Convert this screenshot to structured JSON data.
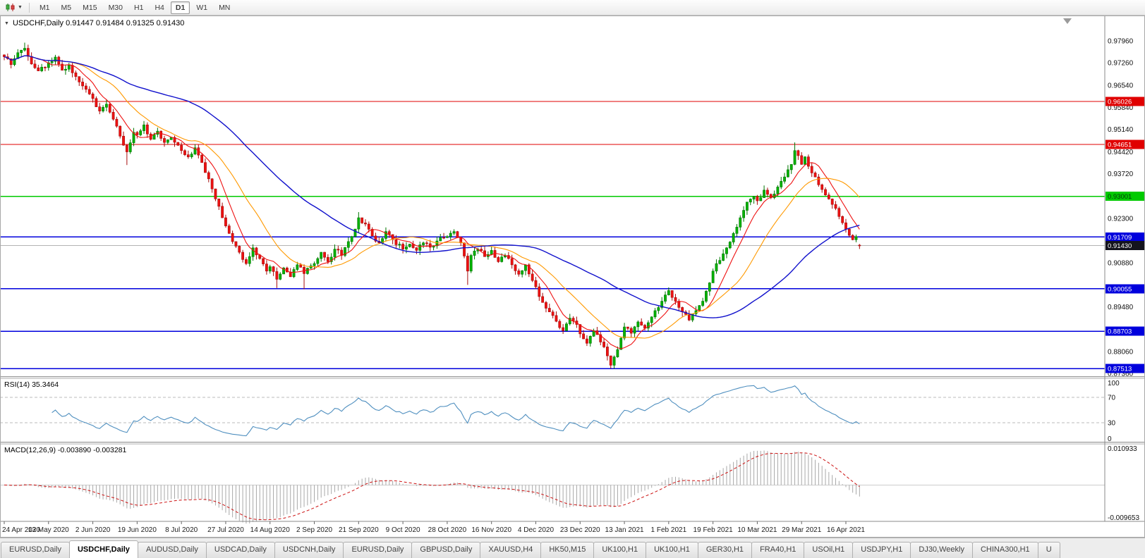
{
  "icons": {
    "caret_down": "▼"
  },
  "toolbar": {
    "timeframes": [
      "M1",
      "M5",
      "M15",
      "M30",
      "H1",
      "H4",
      "D1",
      "W1",
      "MN"
    ],
    "active_timeframe": "D1"
  },
  "chart": {
    "header": "USDCHF,Daily 0.91447 0.91484 0.91325 0.91430",
    "symbol": "USDCHF",
    "period": "Daily"
  },
  "chart_data": {
    "type": "candlestick",
    "title": "USDCHF,Daily",
    "ohlc": {
      "open": 0.91447,
      "high": 0.91484,
      "low": 0.91325,
      "close": 0.9143
    },
    "bar_count": 252,
    "bars_per_label": 13,
    "x_labels": [
      "24 Apr 2020",
      "13 May 2020",
      "2 Jun 2020",
      "19 Jun 2020",
      "8 Jul 2020",
      "27 Jul 2020",
      "14 Aug 2020",
      "2 Sep 2020",
      "21 Sep 2020",
      "9 Oct 2020",
      "28 Oct 2020",
      "16 Nov 2020",
      "4 Dec 2020",
      "23 Dec 2020",
      "13 Jan 2021",
      "1 Feb 2021",
      "19 Feb 2021",
      "10 Mar 2021",
      "29 Mar 2021",
      "16 Apr 2021"
    ],
    "price_range": [
      0.8727,
      0.9872
    ],
    "y_ticks": [
      {
        "v": 0.9796,
        "t": "0.97960"
      },
      {
        "v": 0.9726,
        "t": "0.97260"
      },
      {
        "v": 0.9654,
        "t": "0.96540"
      },
      {
        "v": 0.9584,
        "t": "0.95840"
      },
      {
        "v": 0.9514,
        "t": "0.95140"
      },
      {
        "v": 0.9442,
        "t": "0.94420"
      },
      {
        "v": 0.9372,
        "t": "0.93720"
      },
      {
        "v": 0.923,
        "t": "0.92300"
      },
      {
        "v": 0.9088,
        "t": "0.90880"
      },
      {
        "v": 0.8948,
        "t": "0.89480"
      },
      {
        "v": 0.8806,
        "t": "0.88060"
      },
      {
        "v": 0.8736,
        "t": "0.87360"
      }
    ],
    "hlines": [
      {
        "value": 0.96026,
        "label": "0.96026",
        "color": "#e00000",
        "width": 1,
        "label_fg": "#ffffff"
      },
      {
        "value": 0.94651,
        "label": "0.94651",
        "color": "#e00000",
        "width": 1,
        "label_fg": "#ffffff"
      },
      {
        "value": 0.93001,
        "label": "0.93001",
        "color": "#00ca00",
        "width": 1.2,
        "label_fg": "#003a08"
      },
      {
        "value": 0.91709,
        "label": "0.91709",
        "color": "#0000dd",
        "width": 1.5,
        "label_fg": "#ffffff"
      },
      {
        "value": 0.90055,
        "label": "0.90055",
        "color": "#0000dd",
        "width": 1.5,
        "label_fg": "#ffffff"
      },
      {
        "value": 0.88703,
        "label": "0.88703",
        "color": "#0000dd",
        "width": 1.5,
        "label_fg": "#ffffff"
      },
      {
        "value": 0.87513,
        "label": "0.87513",
        "color": "#0000dd",
        "width": 1.5,
        "label_fg": "#ffffff"
      }
    ],
    "current_price": {
      "value": 0.9143,
      "label": "0.91430",
      "line_color": "#b4b4b4",
      "bg": "#14141e",
      "fg": "#ffffff"
    },
    "close_anchors": [
      [
        0,
        0.9745
      ],
      [
        2,
        0.972
      ],
      [
        4,
        0.9758
      ],
      [
        6,
        0.9772
      ],
      [
        8,
        0.9722
      ],
      [
        10,
        0.97
      ],
      [
        13,
        0.9726
      ],
      [
        15,
        0.9744
      ],
      [
        17,
        0.9702
      ],
      [
        19,
        0.9718
      ],
      [
        21,
        0.9682
      ],
      [
        23,
        0.9652
      ],
      [
        26,
        0.9612
      ],
      [
        28,
        0.9572
      ],
      [
        30,
        0.9594
      ],
      [
        32,
        0.9546
      ],
      [
        34,
        0.9492
      ],
      [
        36,
        0.9442
      ],
      [
        38,
        0.9504
      ],
      [
        39,
        0.9496
      ],
      [
        41,
        0.9528
      ],
      [
        43,
        0.9482
      ],
      [
        45,
        0.9508
      ],
      [
        47,
        0.9472
      ],
      [
        49,
        0.9488
      ],
      [
        52,
        0.9446
      ],
      [
        54,
        0.9426
      ],
      [
        56,
        0.9455
      ],
      [
        58,
        0.9408
      ],
      [
        60,
        0.9356
      ],
      [
        62,
        0.9292
      ],
      [
        64,
        0.9232
      ],
      [
        65,
        0.9206
      ],
      [
        67,
        0.9156
      ],
      [
        69,
        0.9122
      ],
      [
        71,
        0.9086
      ],
      [
        73,
        0.9136
      ],
      [
        75,
        0.9102
      ],
      [
        77,
        0.9062
      ],
      [
        78,
        0.9076
      ],
      [
        80,
        0.9036
      ],
      [
        82,
        0.9072
      ],
      [
        84,
        0.9044
      ],
      [
        86,
        0.9082
      ],
      [
        88,
        0.9054
      ],
      [
        91,
        0.9086
      ],
      [
        93,
        0.9122
      ],
      [
        95,
        0.9092
      ],
      [
        97,
        0.9132
      ],
      [
        99,
        0.9112
      ],
      [
        101,
        0.9156
      ],
      [
        103,
        0.9196
      ],
      [
        104,
        0.9232
      ],
      [
        106,
        0.9212
      ],
      [
        108,
        0.9174
      ],
      [
        110,
        0.9152
      ],
      [
        112,
        0.9188
      ],
      [
        114,
        0.9162
      ],
      [
        117,
        0.9132
      ],
      [
        119,
        0.9148
      ],
      [
        121,
        0.9128
      ],
      [
        123,
        0.9152
      ],
      [
        125,
        0.9138
      ],
      [
        127,
        0.9158
      ],
      [
        130,
        0.9172
      ],
      [
        132,
        0.9188
      ],
      [
        134,
        0.9152
      ],
      [
        136,
        0.9062
      ],
      [
        137,
        0.9112
      ],
      [
        139,
        0.9132
      ],
      [
        141,
        0.9108
      ],
      [
        143,
        0.9128
      ],
      [
        145,
        0.9092
      ],
      [
        147,
        0.9112
      ],
      [
        149,
        0.9082
      ],
      [
        151,
        0.9052
      ],
      [
        153,
        0.9082
      ],
      [
        155,
        0.9032
      ],
      [
        156,
        0.9012
      ],
      [
        158,
        0.8962
      ],
      [
        160,
        0.8932
      ],
      [
        162,
        0.8902
      ],
      [
        164,
        0.8872
      ],
      [
        166,
        0.8912
      ],
      [
        168,
        0.8892
      ],
      [
        169,
        0.8862
      ],
      [
        171,
        0.8832
      ],
      [
        173,
        0.8872
      ],
      [
        175,
        0.8836
      ],
      [
        177,
        0.8792
      ],
      [
        178,
        0.8762
      ],
      [
        180,
        0.8812
      ],
      [
        182,
        0.8884
      ],
      [
        184,
        0.8864
      ],
      [
        186,
        0.89
      ],
      [
        188,
        0.888
      ],
      [
        190,
        0.8916
      ],
      [
        192,
        0.8946
      ],
      [
        194,
        0.8986
      ],
      [
        195,
        0.9
      ],
      [
        197,
        0.8966
      ],
      [
        199,
        0.8932
      ],
      [
        201,
        0.8906
      ],
      [
        203,
        0.8936
      ],
      [
        205,
        0.8966
      ],
      [
        208,
        0.9062
      ],
      [
        210,
        0.9096
      ],
      [
        212,
        0.9136
      ],
      [
        214,
        0.9182
      ],
      [
        216,
        0.9232
      ],
      [
        218,
        0.9282
      ],
      [
        220,
        0.93
      ],
      [
        221,
        0.9286
      ],
      [
        223,
        0.932
      ],
      [
        225,
        0.9296
      ],
      [
        227,
        0.933
      ],
      [
        229,
        0.9362
      ],
      [
        231,
        0.9402
      ],
      [
        232,
        0.9446
      ],
      [
        233,
        0.943
      ],
      [
        234,
        0.9402
      ],
      [
        235,
        0.9426
      ],
      [
        236,
        0.9396
      ],
      [
        238,
        0.9362
      ],
      [
        240,
        0.9322
      ],
      [
        242,
        0.9292
      ],
      [
        244,
        0.9262
      ],
      [
        245,
        0.9236
      ],
      [
        246,
        0.9216
      ],
      [
        247,
        0.9196
      ],
      [
        248,
        0.9176
      ],
      [
        249,
        0.9162
      ],
      [
        250,
        0.9172
      ],
      [
        251,
        0.9143
      ]
    ],
    "specials": [
      {
        "bar": 6,
        "high": 0.979
      },
      {
        "bar": 36,
        "low": 0.94
      },
      {
        "bar": 80,
        "low": 0.9008
      },
      {
        "bar": 88,
        "low": 0.9004
      },
      {
        "bar": 104,
        "high": 0.925
      },
      {
        "bar": 136,
        "low": 0.9018
      },
      {
        "bar": 178,
        "low": 0.87513
      },
      {
        "bar": 232,
        "high": 0.9472
      }
    ],
    "last_bar": {
      "o": 0.91447,
      "h": 0.91484,
      "l": 0.91325,
      "c": 0.9143
    },
    "moving_averages": [
      {
        "period": 8,
        "color": "#ee1111",
        "width": 1.1
      },
      {
        "period": 20,
        "color": "#ff9900",
        "width": 1.1
      },
      {
        "period": 55,
        "color": "#1111cc",
        "width": 1.4
      }
    ],
    "candle_colors": {
      "up_fill": "#00b200",
      "up_stroke": "#007600",
      "down_fill": "#ee1111",
      "down_stroke": "#a60b0b"
    },
    "rsi": {
      "label": "RSI(14) 35.3464",
      "value": 35.3464,
      "period": 14,
      "color": "#4f8fbf",
      "scale_labels": [
        100,
        70,
        30,
        0
      ],
      "dashed_levels": [
        70,
        30
      ]
    },
    "macd": {
      "label": "MACD(12,26,9) -0.003890 -0.003281",
      "values": [
        -0.00389,
        -0.003281
      ],
      "fast": 12,
      "slow": 26,
      "signal": 9,
      "hist_color": "#a8a8a8",
      "signal_color": "#cc1111",
      "range": [
        -0.009653,
        0.010933
      ],
      "axis_labels": [
        {
          "v": 0.010933,
          "t": "0.010933"
        },
        {
          "v": -0.009653,
          "t": "-0.009653"
        }
      ]
    }
  },
  "tabs": {
    "active_index": 1,
    "items": [
      "EURUSD,Daily",
      "USDCHF,Daily",
      "AUDUSD,Daily",
      "USDCAD,Daily",
      "USDCNH,Daily",
      "EURUSD,Daily",
      "GBPUSD,Daily",
      "XAUUSD,H4",
      "HK50,M15",
      "UK100,H1",
      "UK100,H1",
      "GER30,H1",
      "FRA40,H1",
      "USOil,H1",
      "USDJPY,H1",
      "DJ30,Weekly",
      "CHINA300,H1",
      "U"
    ]
  }
}
